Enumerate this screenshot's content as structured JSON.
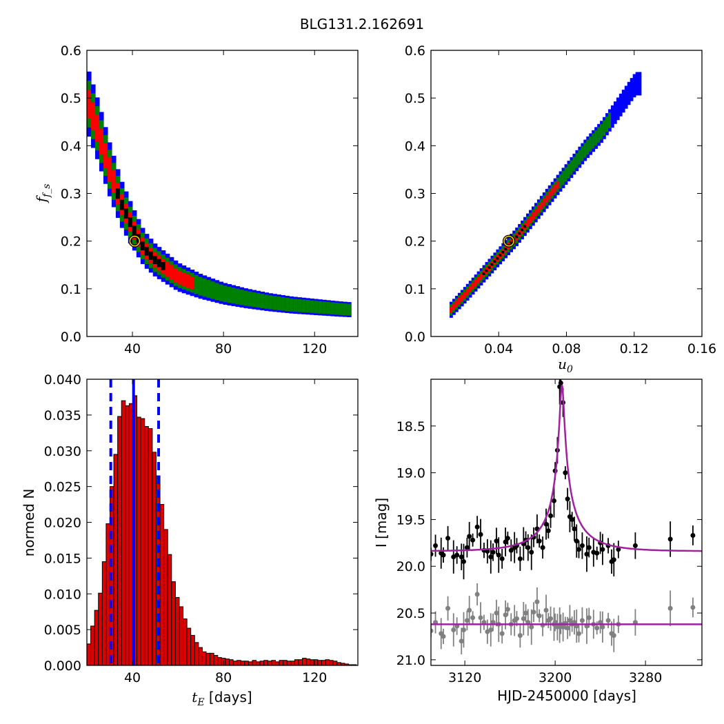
{
  "figure": {
    "title": "BLG131.2.162691",
    "colors": {
      "level1": "#0000ff",
      "level2": "#008000",
      "level3": "#ff0000",
      "level4": "#000000",
      "marker_ring": "#ffd700",
      "model_line": "#a020a0",
      "data_black": "#000000",
      "data_grey": "#808080",
      "hist_bar": "#dd0000",
      "median_line": "#0000ff"
    }
  },
  "chart_data": [
    {
      "id": "fs_vs_tE",
      "type": "heatmap",
      "ylabel": "f_s",
      "xticks": [
        40,
        80,
        120
      ],
      "xlim": [
        20,
        139
      ],
      "yticks": [
        "0.0",
        "0.1",
        "0.2",
        "0.3",
        "0.4",
        "0.5",
        "0.6"
      ],
      "ylim": [
        0.0,
        0.6
      ],
      "description_of_ridge": "f_s decreasing with t_E along a curved band",
      "ridge": {
        "x": [
          20,
          25,
          30,
          35,
          40,
          45,
          50,
          60,
          70,
          80,
          90,
          100,
          110,
          120,
          130,
          136
        ],
        "y": [
          0.5,
          0.43,
          0.35,
          0.28,
          0.23,
          0.185,
          0.16,
          0.125,
          0.105,
          0.09,
          0.08,
          0.072,
          0.066,
          0.062,
          0.058,
          0.056
        ]
      },
      "best_fit": {
        "x": 41,
        "y": 0.2
      }
    },
    {
      "id": "fs_vs_u0",
      "type": "heatmap",
      "xlabel": "u_0",
      "xticks": [
        "0.04",
        "0.08",
        "0.12",
        "0.16"
      ],
      "xlim": [
        0.0,
        0.16
      ],
      "yticks": [
        "0.0",
        "0.1",
        "0.2",
        "0.3",
        "0.4",
        "0.5",
        "0.6"
      ],
      "ylim": [
        0.0,
        0.6
      ],
      "ridge": {
        "x": [
          0.011,
          0.02,
          0.03,
          0.04,
          0.05,
          0.06,
          0.07,
          0.08,
          0.09,
          0.1,
          0.11,
          0.12
        ],
        "y": [
          0.056,
          0.09,
          0.13,
          0.17,
          0.21,
          0.255,
          0.3,
          0.345,
          0.39,
          0.43,
          0.48,
          0.53
        ]
      },
      "best_fit": {
        "x": 0.046,
        "y": 0.2
      }
    },
    {
      "id": "tE_histogram",
      "type": "bar",
      "xlabel": "t_E",
      "xlabel_unit": " [days]",
      "ylabel": "normed N",
      "xticks": [
        40,
        80,
        120
      ],
      "xlim": [
        20,
        139
      ],
      "yticks": [
        "0.000",
        "0.005",
        "0.010",
        "0.015",
        "0.020",
        "0.025",
        "0.030",
        "0.035",
        "0.040"
      ],
      "ylim": [
        0.0,
        0.04
      ],
      "bin_start": 20,
      "bin_width": 1.69,
      "values": [
        0.003,
        0.0055,
        0.0077,
        0.0101,
        0.0145,
        0.0198,
        0.025,
        0.0295,
        0.0348,
        0.037,
        0.0363,
        0.0366,
        0.0377,
        0.0347,
        0.0345,
        0.0334,
        0.0331,
        0.0298,
        0.0265,
        0.0225,
        0.019,
        0.0155,
        0.0117,
        0.0095,
        0.0082,
        0.0065,
        0.0052,
        0.0042,
        0.0032,
        0.0025,
        0.0019,
        0.0017,
        0.0017,
        0.0014,
        0.0011,
        0.001,
        0.0009,
        0.0008,
        0.0006,
        0.0007,
        0.0006,
        0.0006,
        0.0005,
        0.0007,
        0.0005,
        0.0006,
        0.0007,
        0.0006,
        0.0007,
        0.0005,
        0.0007,
        0.0007,
        0.0006,
        0.0006,
        0.0008,
        0.0008,
        0.001,
        0.0009,
        0.0008,
        0.0008,
        0.0007,
        0.0007,
        0.0008,
        0.0007,
        0.0006,
        0.0004,
        0.0003,
        0.0002,
        0.0001,
        0.0001
      ],
      "median": 40.5,
      "interval": [
        30.5,
        51.5
      ]
    },
    {
      "id": "lightcurve",
      "type": "scatter",
      "xlabel": "HJD-2450000 [days]",
      "ylabel": "I [mag]",
      "xticks": [
        3120,
        3200,
        3280
      ],
      "xlim": [
        3090,
        3330
      ],
      "yticks": [
        "18.5",
        "19.0",
        "19.5",
        "20.0",
        "20.5",
        "21.0"
      ],
      "ylim_inverted": [
        21.06,
        18.0
      ],
      "model": {
        "t0": 3206,
        "tE": 40.5,
        "u0": 0.046,
        "baseline": 19.84,
        "offset_baseline": 20.62
      },
      "points_black": [
        [
          3090,
          19.87
        ],
        [
          3094,
          19.78
        ],
        [
          3099,
          19.86
        ],
        [
          3101,
          19.88
        ],
        [
          3105,
          19.7
        ],
        [
          3110,
          19.9
        ],
        [
          3113,
          19.88
        ],
        [
          3117,
          19.9
        ],
        [
          3119,
          19.95
        ],
        [
          3122,
          19.8
        ],
        [
          3124,
          19.68
        ],
        [
          3127,
          19.72
        ],
        [
          3131,
          19.58
        ],
        [
          3134,
          19.66
        ],
        [
          3137,
          19.83
        ],
        [
          3140,
          19.84
        ],
        [
          3143,
          19.9
        ],
        [
          3145,
          19.85
        ],
        [
          3148,
          19.73
        ],
        [
          3150,
          19.88
        ],
        [
          3153,
          19.92
        ],
        [
          3156,
          19.74
        ],
        [
          3158,
          19.7
        ],
        [
          3161,
          19.83
        ],
        [
          3164,
          19.8
        ],
        [
          3166,
          19.78
        ],
        [
          3169,
          19.92
        ],
        [
          3172,
          19.76
        ],
        [
          3174,
          19.72
        ],
        [
          3176,
          19.8
        ],
        [
          3179,
          19.85
        ],
        [
          3181,
          19.69
        ],
        [
          3184,
          19.6
        ],
        [
          3186,
          19.73
        ],
        [
          3189,
          19.8
        ],
        [
          3192,
          19.55
        ],
        [
          3194,
          19.62
        ],
        [
          3196,
          19.46
        ],
        [
          3199,
          19.3
        ],
        [
          3200,
          18.98
        ],
        [
          3202,
          18.76
        ],
        [
          3204,
          18.08
        ],
        [
          3205,
          18.04
        ],
        [
          3207,
          18.25
        ],
        [
          3209,
          19.0
        ],
        [
          3211,
          19.28
        ],
        [
          3213,
          19.47
        ],
        [
          3215,
          19.5
        ],
        [
          3217,
          19.6
        ],
        [
          3219,
          19.73
        ],
        [
          3221,
          19.82
        ],
        [
          3224,
          19.78
        ],
        [
          3228,
          19.87
        ],
        [
          3230,
          19.8
        ],
        [
          3234,
          19.85
        ],
        [
          3237,
          19.86
        ],
        [
          3240,
          19.75
        ],
        [
          3242,
          19.82
        ],
        [
          3247,
          19.78
        ],
        [
          3250,
          19.95
        ],
        [
          3252,
          19.93
        ],
        [
          3256,
          19.82
        ],
        [
          3271,
          19.78
        ],
        [
          3302,
          19.71
        ],
        [
          3322,
          19.67
        ]
      ],
      "points_grey": [
        [
          3090,
          20.69
        ],
        [
          3094,
          20.6
        ],
        [
          3099,
          20.72
        ],
        [
          3101,
          20.75
        ],
        [
          3105,
          20.45
        ],
        [
          3110,
          20.68
        ],
        [
          3113,
          20.64
        ],
        [
          3117,
          20.8
        ],
        [
          3119,
          20.68
        ],
        [
          3122,
          20.58
        ],
        [
          3124,
          20.47
        ],
        [
          3127,
          20.55
        ],
        [
          3131,
          20.3
        ],
        [
          3134,
          20.55
        ],
        [
          3137,
          20.6
        ],
        [
          3140,
          20.7
        ],
        [
          3143,
          20.68
        ],
        [
          3145,
          20.6
        ],
        [
          3148,
          20.5
        ],
        [
          3150,
          20.62
        ],
        [
          3153,
          20.72
        ],
        [
          3156,
          20.52
        ],
        [
          3158,
          20.46
        ],
        [
          3161,
          20.62
        ],
        [
          3164,
          20.58
        ],
        [
          3166,
          20.56
        ],
        [
          3169,
          20.74
        ],
        [
          3172,
          20.56
        ],
        [
          3174,
          20.5
        ],
        [
          3176,
          20.6
        ],
        [
          3179,
          20.65
        ],
        [
          3181,
          20.49
        ],
        [
          3184,
          20.38
        ],
        [
          3186,
          20.53
        ],
        [
          3189,
          20.63
        ],
        [
          3192,
          20.47
        ],
        [
          3194,
          20.58
        ],
        [
          3196,
          20.56
        ],
        [
          3199,
          20.62
        ],
        [
          3200,
          20.6
        ],
        [
          3202,
          20.65
        ],
        [
          3204,
          20.63
        ],
        [
          3205,
          20.62
        ],
        [
          3207,
          20.65
        ],
        [
          3209,
          20.61
        ],
        [
          3211,
          20.66
        ],
        [
          3213,
          20.58
        ],
        [
          3215,
          20.62
        ],
        [
          3217,
          20.6
        ],
        [
          3219,
          20.64
        ],
        [
          3221,
          20.72
        ],
        [
          3224,
          20.58
        ],
        [
          3228,
          20.64
        ],
        [
          3230,
          20.55
        ],
        [
          3234,
          20.62
        ],
        [
          3237,
          20.66
        ],
        [
          3240,
          20.6
        ],
        [
          3242,
          20.65
        ],
        [
          3247,
          20.58
        ],
        [
          3250,
          20.72
        ],
        [
          3252,
          20.74
        ],
        [
          3256,
          20.62
        ],
        [
          3271,
          20.6
        ],
        [
          3302,
          20.45
        ],
        [
          3322,
          20.44
        ]
      ]
    }
  ]
}
